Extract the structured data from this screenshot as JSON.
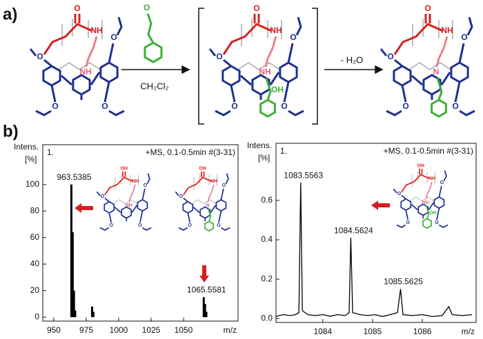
{
  "panel_labels": [
    "a)",
    "b)"
  ],
  "scheme": {
    "aldehyde": "O",
    "condition": "CH₂Cl₂",
    "step2": "- H₂O",
    "molecules": [
      {
        "labels": [
          "O",
          "NH",
          "O",
          "O",
          "O",
          "O",
          "NH"
        ]
      },
      {
        "labels": [
          "O",
          "NH",
          "O",
          "O",
          "O",
          "O",
          "NH",
          "OH"
        ]
      },
      {
        "labels": [
          "O",
          "NH",
          "O",
          "O",
          "O",
          "O",
          "N"
        ]
      }
    ]
  },
  "insets": [
    {
      "labels": [
        "OH",
        "NH",
        "O",
        "O",
        "O",
        "O",
        "NH"
      ]
    },
    {
      "labels": [
        "OH",
        "NH",
        "O",
        "O",
        "O",
        "O",
        "N"
      ]
    },
    {
      "labels": [
        "OH",
        "NH",
        "O",
        "O",
        "O",
        "O",
        "NH",
        "OH"
      ]
    }
  ],
  "chart_data": [
    {
      "type": "stick",
      "header": "1.",
      "subtitle": "+MS, 0.1-0.5min #(3-31)",
      "ylabel": "Intens.",
      "yunit": "[%]",
      "xlabel": "m/z",
      "x": [
        963.5385,
        964.54,
        965.54,
        966.5,
        979.5,
        980.5,
        1065.5581,
        1066.56,
        1067.56
      ],
      "series": [
        {
          "color": "#000000",
          "values": [
            100,
            64,
            20,
            5,
            8,
            4,
            15,
            10,
            4
          ]
        }
      ],
      "annotations": [
        963.5385,
        1065.5581
      ],
      "xlim": [
        941.5,
        1092
      ],
      "ylim": [
        -3,
        130
      ],
      "xticks": [
        950,
        975,
        1000,
        1025,
        1050
      ],
      "yticks": [
        0,
        20,
        40,
        60,
        80,
        100
      ]
    },
    {
      "type": "line",
      "header": "1.",
      "subtitle": "+MS, 0.1-0.5min #(3-31)",
      "ylabel": "Intens.",
      "yunit": "[%]",
      "xlabel": "m/z",
      "x": [
        1083.06,
        1083.2,
        1083.35,
        1083.45,
        1083.52,
        1083.5563,
        1083.59,
        1083.7,
        1083.85,
        1084.0,
        1084.15,
        1084.3,
        1084.45,
        1084.53,
        1084.5624,
        1084.6,
        1084.75,
        1084.9,
        1085.05,
        1085.2,
        1085.35,
        1085.5,
        1085.5625,
        1085.61,
        1085.8,
        1086.0,
        1086.2,
        1086.4,
        1086.53,
        1086.6,
        1086.8,
        1087.0
      ],
      "series": [
        {
          "color": "#000000",
          "values": [
            0.01,
            0.02,
            0.015,
            0.02,
            0.03,
            0.69,
            0.04,
            0.02,
            0.015,
            0.02,
            0.012,
            0.02,
            0.015,
            0.03,
            0.41,
            0.03,
            0.02,
            0.015,
            0.02,
            0.01,
            0.02,
            0.03,
            0.15,
            0.02,
            0.015,
            0.02,
            0.01,
            0.015,
            0.06,
            0.02,
            0.015,
            0.02
          ]
        }
      ],
      "annotations": [
        1083.5563,
        1084.5624,
        1085.5625
      ],
      "xlim": [
        1083.06,
        1087.08
      ],
      "ylim": [
        -0.02,
        0.89
      ],
      "xticks": [
        1084,
        1085,
        1086
      ],
      "yticks": [
        {
          "value": 0,
          "label": "0.0"
        },
        0.2,
        0.4,
        0.6
      ]
    }
  ]
}
